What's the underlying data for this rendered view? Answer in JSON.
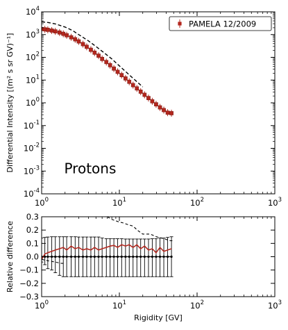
{
  "colors": {
    "data": "#b3271e",
    "model": "#000000",
    "axis": "#000000",
    "background": "#ffffff"
  },
  "chart_data": [
    {
      "type": "scatter",
      "panel": "top",
      "x_scale": "log",
      "y_scale": "log",
      "xlim": [
        1,
        1000
      ],
      "ylim": [
        0.0001,
        10000
      ],
      "ylabel": "Differential Intensity [(m² s sr GV)⁻¹]",
      "xlabel": "",
      "annotation": "Protons",
      "legend_position": "top-right",
      "x_ticks": [
        {
          "v": 1,
          "b": "10",
          "e": "0"
        },
        {
          "v": 10,
          "b": "10",
          "e": "1"
        },
        {
          "v": 100,
          "b": "10",
          "e": "2"
        },
        {
          "v": 1000,
          "b": "10",
          "e": "3"
        }
      ],
      "y_ticks": [
        {
          "v": 0.0001,
          "b": "10",
          "e": "-4"
        },
        {
          "v": 0.001,
          "b": "10",
          "e": "-3"
        },
        {
          "v": 0.01,
          "b": "10",
          "e": "-2"
        },
        {
          "v": 0.1,
          "b": "10",
          "e": "-1"
        },
        {
          "v": 1,
          "b": "10",
          "e": "0"
        },
        {
          "v": 10,
          "b": "10",
          "e": "1"
        },
        {
          "v": 100,
          "b": "10",
          "e": "2"
        },
        {
          "v": 1000,
          "b": "10",
          "e": "3"
        },
        {
          "v": 10000,
          "b": "10",
          "e": "4"
        }
      ],
      "series": [
        {
          "name": "PAMELA 12/2009",
          "marker": "square",
          "x": [
            1.0,
            1.1,
            1.2,
            1.35,
            1.5,
            1.7,
            1.9,
            2.1,
            2.4,
            2.7,
            3.0,
            3.4,
            3.8,
            4.3,
            4.8,
            5.4,
            6.0,
            6.8,
            7.6,
            8.5,
            9.5,
            10.7,
            12.0,
            13.4,
            15.0,
            16.8,
            18.8,
            21.1,
            23.7,
            26.5,
            29.7,
            33.3,
            37.3,
            41.8,
            46.8
          ],
          "y": [
            1750,
            1700,
            1620,
            1500,
            1380,
            1230,
            1080,
            930,
            760,
            620,
            500,
            380,
            290,
            215,
            160,
            118,
            85,
            62,
            45,
            32,
            23,
            16.5,
            11.8,
            8.4,
            6.0,
            4.3,
            3.1,
            2.25,
            1.62,
            1.17,
            0.86,
            0.63,
            0.48,
            0.37,
            0.35
          ]
        },
        {
          "name": "",
          "style": "dashed",
          "x": [
            1.0,
            1.2,
            1.5,
            2.0,
            2.5,
            3.0,
            4.0,
            5.0,
            6.0,
            8.0,
            10.0,
            15.0,
            20.0
          ],
          "y": [
            3600,
            3400,
            2950,
            2150,
            1500,
            1000,
            530,
            300,
            185,
            85,
            42,
            12,
            5
          ]
        }
      ]
    },
    {
      "type": "line",
      "panel": "bottom",
      "x_scale": "log",
      "xlim": [
        1,
        1000
      ],
      "ylim": [
        -0.3,
        0.3
      ],
      "xlabel": "Rigidity [GV]",
      "ylabel": "Relative difference",
      "x_ticks": [
        {
          "v": 1,
          "b": "10",
          "e": "0"
        },
        {
          "v": 10,
          "b": "10",
          "e": "1"
        },
        {
          "v": 100,
          "b": "10",
          "e": "2"
        },
        {
          "v": 1000,
          "b": "10",
          "e": "3"
        }
      ],
      "y_ticks": [
        -0.3,
        -0.2,
        -0.1,
        0.0,
        0.1,
        0.2,
        0.3
      ],
      "y_tick_labels": [
        "−0.3",
        "−0.2",
        "−0.1",
        "0.0",
        "0.1",
        "0.2",
        "0.3"
      ],
      "error_band": {
        "x": [
          1.0,
          1.1,
          1.2,
          1.35,
          1.5,
          1.7,
          1.9,
          2.1,
          2.4,
          2.7,
          3.0,
          3.4,
          3.8,
          4.3,
          4.8,
          5.4,
          6.0,
          6.8,
          7.6,
          8.5,
          9.5,
          10.7,
          12.0,
          13.4,
          15.0,
          16.8,
          18.8,
          21.1,
          23.7,
          26.5,
          29.7,
          33.3,
          37.3,
          41.8,
          46.8
        ],
        "upper": [
          0.14,
          0.145,
          0.148,
          0.15,
          0.15,
          0.15,
          0.15,
          0.15,
          0.15,
          0.15,
          0.148,
          0.148,
          0.148,
          0.148,
          0.148,
          0.148,
          0.14,
          0.135,
          0.135,
          0.135,
          0.135,
          0.135,
          0.133,
          0.133,
          0.133,
          0.133,
          0.133,
          0.133,
          0.133,
          0.135,
          0.135,
          0.14,
          0.14,
          0.145,
          0.15
        ],
        "lower": [
          -0.04,
          -0.06,
          -0.09,
          -0.1,
          -0.12,
          -0.14,
          -0.15,
          -0.15,
          -0.15,
          -0.15,
          -0.15,
          -0.15,
          -0.15,
          -0.15,
          -0.15,
          -0.15,
          -0.15,
          -0.15,
          -0.15,
          -0.15,
          -0.15,
          -0.15,
          -0.15,
          -0.15,
          -0.15,
          -0.15,
          -0.15,
          -0.15,
          -0.15,
          -0.15,
          -0.15,
          -0.15,
          -0.15,
          -0.15,
          -0.15
        ]
      },
      "series": [
        {
          "name": "PAMELA 12/2009",
          "style": "solid",
          "x": [
            1.0,
            1.1,
            1.2,
            1.35,
            1.5,
            1.7,
            1.9,
            2.1,
            2.4,
            2.7,
            3.0,
            3.4,
            3.8,
            4.3,
            4.8,
            5.4,
            6.0,
            6.8,
            7.6,
            8.5,
            9.5,
            10.7,
            12.0,
            13.4,
            15.0,
            16.8,
            18.8,
            21.1,
            23.7,
            26.5,
            29.7,
            33.3,
            37.3,
            41.8,
            46.8
          ],
          "y": [
            -0.02,
            0.02,
            0.03,
            0.04,
            0.05,
            0.06,
            0.07,
            0.05,
            0.08,
            0.06,
            0.07,
            0.05,
            0.06,
            0.05,
            0.07,
            0.05,
            0.06,
            0.07,
            0.08,
            0.085,
            0.07,
            0.09,
            0.08,
            0.09,
            0.07,
            0.09,
            0.06,
            0.08,
            0.05,
            0.06,
            0.03,
            0.07,
            0.04,
            0.05,
            0.06
          ]
        },
        {
          "name": "",
          "style": "dashed",
          "x": [
            7.0,
            8.0,
            9.0,
            10.0,
            11.0,
            13.0,
            15.0,
            17.0,
            20.0,
            25.0,
            30.0,
            35.0,
            40.0,
            45.0,
            50.0
          ],
          "y": [
            0.3,
            0.28,
            0.27,
            0.26,
            0.255,
            0.24,
            0.23,
            0.2,
            0.17,
            0.17,
            0.15,
            0.14,
            0.13,
            0.12,
            0.12
          ]
        },
        {
          "name": "",
          "style": "dashed",
          "x": [
            1.0,
            1.2,
            1.5,
            1.8,
            2.0
          ],
          "y": [
            -0.02,
            -0.03,
            -0.04,
            -0.05,
            -0.05
          ]
        }
      ]
    }
  ]
}
